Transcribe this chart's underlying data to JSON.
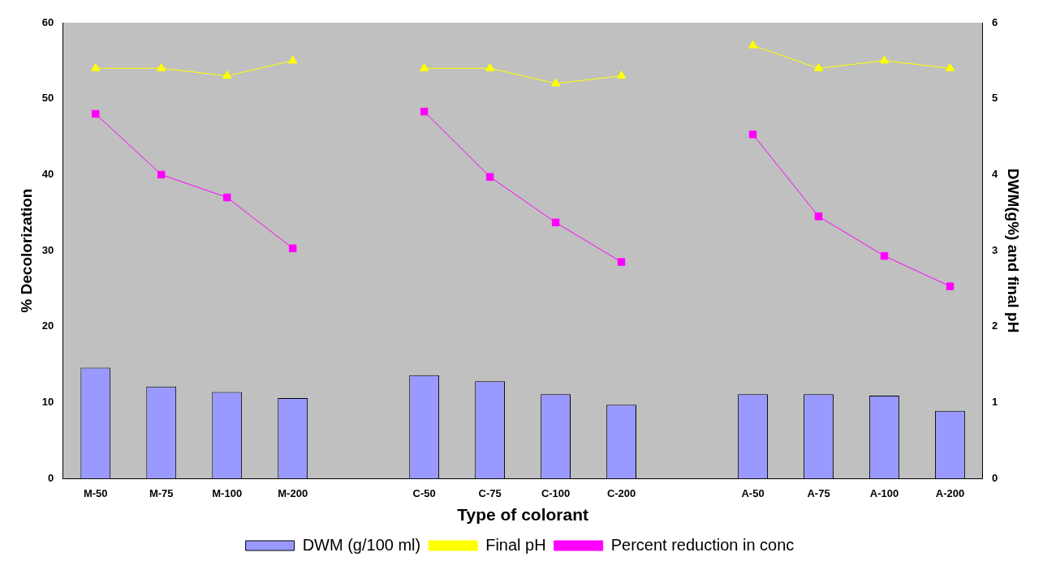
{
  "chart_data": {
    "type": "bar",
    "xlabel": "Type of colorant",
    "ylabel": "% Decolorization",
    "y2label": "DWM(g%) and final pH",
    "categories": [
      "M-50",
      "M-75",
      "M-100",
      "M-200",
      null,
      "C-50",
      "C-75",
      "C-100",
      "C-200",
      null,
      "A-50",
      "A-75",
      "A-100",
      "A-200"
    ],
    "series": [
      {
        "name": "DWM (g/100 ml)",
        "axis": "y2",
        "color": "#9999ff",
        "values": [
          1.46,
          1.21,
          1.14,
          1.06,
          null,
          1.36,
          1.28,
          1.11,
          0.97,
          null,
          1.11,
          1.11,
          1.09,
          0.89
        ]
      },
      {
        "name": "Final pH",
        "type": "line",
        "axis": "y2",
        "color": "#ffff00",
        "marker": "triangle",
        "values": [
          5.4,
          5.4,
          5.3,
          5.5,
          null,
          5.4,
          5.4,
          5.2,
          5.3,
          null,
          5.7,
          5.4,
          5.5,
          5.4
        ]
      },
      {
        "name": "Percent reduction in conc",
        "type": "line",
        "color": "#ff00ff",
        "marker": "square",
        "values": [
          48,
          40,
          37,
          30.3,
          null,
          48.3,
          39.7,
          33.7,
          28.5,
          null,
          45.3,
          34.5,
          29.3,
          25.3
        ]
      }
    ],
    "ylim": [
      0,
      60
    ],
    "yticks": [
      0,
      10,
      20,
      30,
      40,
      50,
      60
    ],
    "y2lim": [
      0,
      6
    ],
    "y2ticks": [
      0,
      1,
      2,
      3,
      4,
      5,
      6
    ],
    "grid": false,
    "legend": "bottom"
  }
}
